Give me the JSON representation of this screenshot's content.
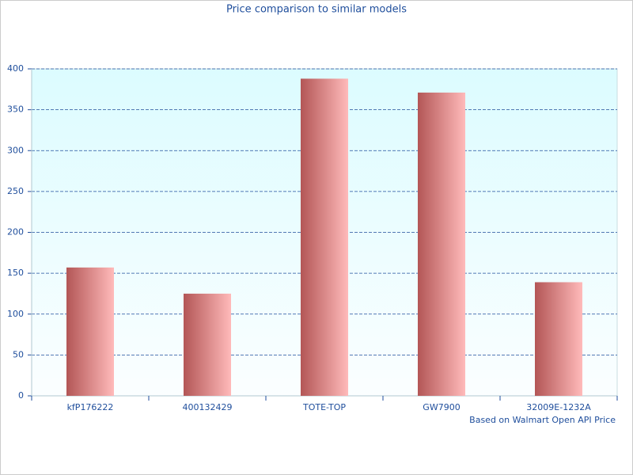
{
  "chart_data": {
    "type": "bar",
    "title": "Price comparison to similar models",
    "categories": [
      "kfP176222",
      "400132429",
      "TOTE-TOP",
      "GW7900",
      "32009E-1232A"
    ],
    "values": [
      157,
      125,
      388,
      371,
      139
    ],
    "gradient": [
      "#b35656",
      "#ffbaba"
    ],
    "ylim": [
      0,
      400
    ],
    "yticks": [
      0,
      50,
      100,
      150,
      200,
      250,
      300,
      350,
      400
    ],
    "grid": true,
    "annotation": "Based on Walmart Open API Price"
  }
}
